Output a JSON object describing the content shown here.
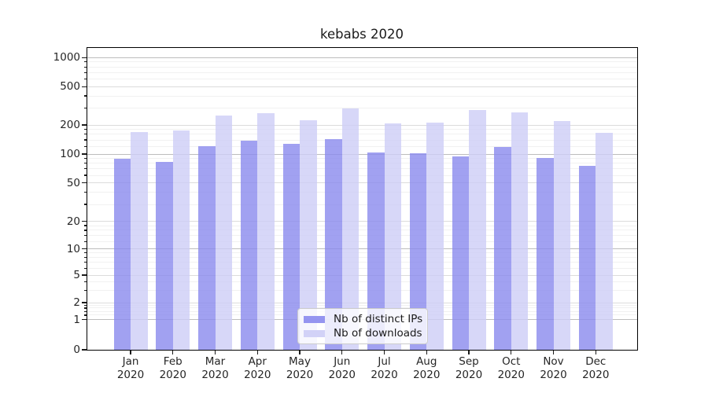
{
  "chart_data": {
    "type": "bar",
    "title": "kebabs 2020",
    "x_year": "2020",
    "categories": [
      "Jan",
      "Feb",
      "Mar",
      "Apr",
      "May",
      "Jun",
      "Jul",
      "Aug",
      "Sep",
      "Oct",
      "Nov",
      "Dec"
    ],
    "series": [
      {
        "name": "Nb of distinct IPs",
        "color": "#8a8aee",
        "values": [
          90,
          83,
          121,
          138,
          127,
          144,
          104,
          101,
          95,
          118,
          91,
          76
        ]
      },
      {
        "name": "Nb of downloads",
        "color": "#cdcdf6",
        "values": [
          170,
          176,
          252,
          266,
          224,
          294,
          207,
          211,
          285,
          272,
          220,
          166
        ]
      }
    ],
    "y_axis": {
      "scale": "pseudo-log",
      "tick_values": [
        1000,
        500,
        200,
        100,
        50,
        20,
        10,
        5,
        2,
        1,
        0
      ],
      "range": [
        0,
        1000
      ]
    },
    "legend": {
      "position": "bottom-center"
    },
    "grid": true
  },
  "colors": {
    "background": "#ffffff",
    "axis": "#000000",
    "text": "#262626",
    "grid_major": "#dcdcdc",
    "grid_power10": "#bdbdbd",
    "grid_minor": "#f1f1f1",
    "legend_border": "#cccccc"
  }
}
